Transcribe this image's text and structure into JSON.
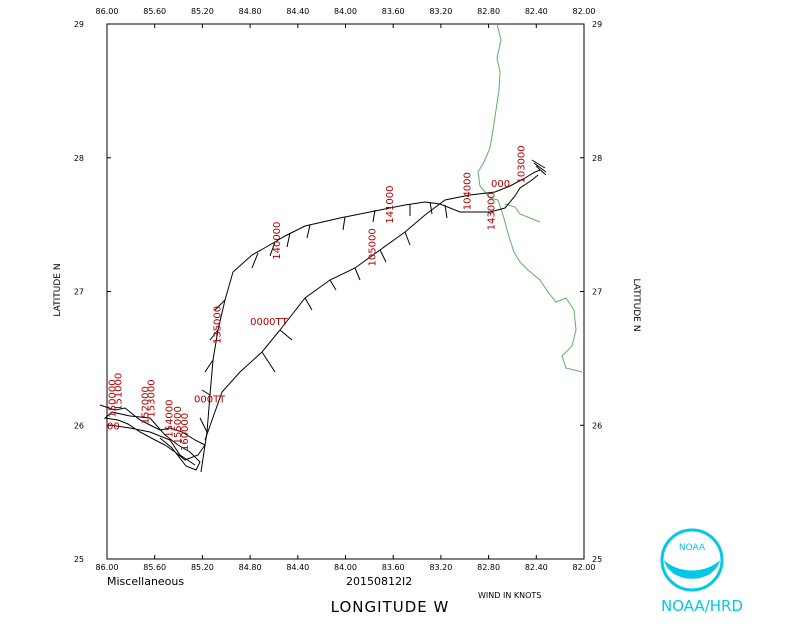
{
  "plot": {
    "x_axis": {
      "title": "LONGITUDE W",
      "range": [
        -86.0,
        -82.0
      ],
      "ticks": [
        {
          "value": -86.0,
          "label": "86.00"
        },
        {
          "value": -85.6,
          "label": "85.60"
        },
        {
          "value": -85.2,
          "label": "85.20"
        },
        {
          "value": -84.8,
          "label": "84.80"
        },
        {
          "value": -84.4,
          "label": "84.40"
        },
        {
          "value": -84.0,
          "label": "84.00"
        },
        {
          "value": -83.6,
          "label": "83.60"
        },
        {
          "value": -83.2,
          "label": "83.20"
        },
        {
          "value": -82.8,
          "label": "82.80"
        },
        {
          "value": -82.4,
          "label": "82.40"
        },
        {
          "value": -82.0,
          "label": "82.00"
        }
      ]
    },
    "y_axis": {
      "title_left": "LATITUDE N",
      "title_right": "LATITUDE N",
      "range": [
        25,
        29
      ],
      "ticks": [
        {
          "value": 25,
          "label": "25"
        },
        {
          "value": 26,
          "label": "26"
        },
        {
          "value": 27,
          "label": "27"
        },
        {
          "value": 28,
          "label": "28"
        },
        {
          "value": 29,
          "label": "29"
        }
      ]
    },
    "bottom_left_label": "Miscellaneous",
    "bottom_center_label": "20150812I2",
    "wind_units_label": "WIND IN KNOTS",
    "time_labels": [
      {
        "text": "140000",
        "lon": -84.55,
        "lat": 27.38,
        "rotate": -90
      },
      {
        "text": "141000",
        "lon": -83.6,
        "lat": 27.65,
        "rotate": -90
      },
      {
        "text": "135000",
        "lon": -85.05,
        "lat": 26.75,
        "rotate": -90
      },
      {
        "text": "105000",
        "lon": -83.75,
        "lat": 27.33,
        "rotate": -90
      },
      {
        "text": "104000",
        "lon": -82.95,
        "lat": 27.75,
        "rotate": -90
      },
      {
        "text": "103000",
        "lon": -82.5,
        "lat": 27.95,
        "rotate": -90
      },
      {
        "text": "143000",
        "lon": -82.75,
        "lat": 27.6,
        "rotate": -90
      },
      {
        "text": "0000TT",
        "lon": -84.8,
        "lat": 26.75,
        "rotate": 0
      },
      {
        "text": "000TT",
        "lon": -85.27,
        "lat": 26.17,
        "rotate": 0
      },
      {
        "text": "00",
        "lon": -86.0,
        "lat": 25.97,
        "rotate": 0
      },
      {
        "text": "000",
        "lon": -82.78,
        "lat": 27.78,
        "rotate": 0
      },
      {
        "text": "150000",
        "lon": -85.93,
        "lat": 26.2,
        "rotate": -90
      },
      {
        "text": "151000",
        "lon": -85.88,
        "lat": 26.25,
        "rotate": -90
      },
      {
        "text": "152000",
        "lon": -85.65,
        "lat": 26.15,
        "rotate": -90
      },
      {
        "text": "153000",
        "lon": -85.6,
        "lat": 26.2,
        "rotate": -90
      },
      {
        "text": "154000",
        "lon": -85.45,
        "lat": 26.05,
        "rotate": -90
      },
      {
        "text": "155000",
        "lon": -85.38,
        "lat": 26.0,
        "rotate": -90
      },
      {
        "text": "160000",
        "lon": -85.32,
        "lat": 25.95,
        "rotate": -90
      }
    ]
  },
  "logo": {
    "text": "NOAA/HRD",
    "emblem_text": "NOAA",
    "color": "#00c8e6"
  },
  "colors": {
    "track": "#000000",
    "coastline": "#60b060",
    "time_labels": "#b40000"
  }
}
